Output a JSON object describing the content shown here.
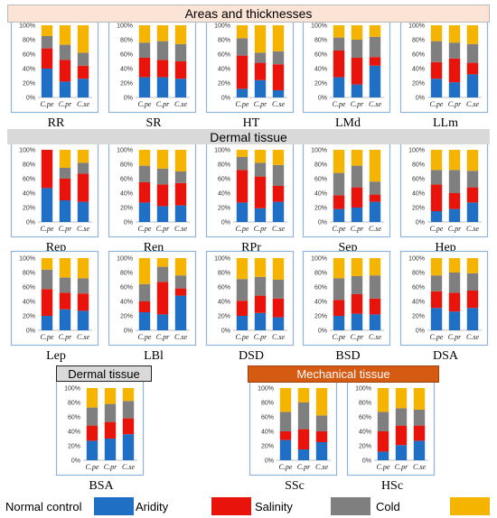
{
  "headers": {
    "areas": "Areas and thicknesses",
    "dermal": "Dermal tissue",
    "dermal_small": "Dermal tissue",
    "mechanical": "Mechanical tissue"
  },
  "legend": {
    "items": [
      {
        "label": "Normal control",
        "color": "#1f6fc5"
      },
      {
        "label": "Aridity",
        "color": "#e8140c"
      },
      {
        "label": "Salinity",
        "color": "#7f7f7f"
      },
      {
        "label": "Cold",
        "color": "#f5b400"
      }
    ]
  },
  "chart_data": {
    "type": "bar",
    "stacked": "percent",
    "y_ticks": [
      "0%",
      "20%",
      "40%",
      "60%",
      "80%",
      "100%"
    ],
    "categories": [
      "C.pe",
      "C.pr",
      "C.se"
    ],
    "series_names": [
      "Normal control",
      "Aridity",
      "Salinity",
      "Cold"
    ],
    "colors": [
      "#1f6fc5",
      "#e8140c",
      "#7f7f7f",
      "#f5b400"
    ],
    "panels": [
      {
        "title": "RR",
        "cumulative": [
          [
            40,
            68,
            85
          ],
          [
            22,
            52,
            73
          ],
          [
            26,
            44,
            62
          ]
        ]
      },
      {
        "title": "SR",
        "cumulative": [
          [
            28,
            55,
            76
          ],
          [
            28,
            52,
            78
          ],
          [
            26,
            50,
            74
          ]
        ]
      },
      {
        "title": "HT",
        "cumulative": [
          [
            12,
            58,
            82
          ],
          [
            24,
            48,
            62
          ],
          [
            10,
            46,
            64
          ]
        ]
      },
      {
        "title": "LMd",
        "cumulative": [
          [
            28,
            65,
            83
          ],
          [
            18,
            55,
            80
          ],
          [
            44,
            56,
            84
          ]
        ]
      },
      {
        "title": "LLm",
        "cumulative": [
          [
            26,
            49,
            78
          ],
          [
            21,
            54,
            76
          ],
          [
            32,
            48,
            74
          ]
        ]
      },
      {
        "title": "Rep",
        "cumulative": [
          [
            47,
            100,
            100
          ],
          [
            30,
            60,
            75
          ],
          [
            28,
            67,
            82
          ]
        ]
      },
      {
        "title": "Ren",
        "cumulative": [
          [
            27,
            55,
            78
          ],
          [
            22,
            52,
            74
          ],
          [
            23,
            54,
            70
          ]
        ]
      },
      {
        "title": "RPr",
        "cumulative": [
          [
            27,
            72,
            90
          ],
          [
            19,
            63,
            82
          ],
          [
            28,
            50,
            79
          ]
        ]
      },
      {
        "title": "Sep",
        "cumulative": [
          [
            18,
            37,
            68
          ],
          [
            20,
            48,
            78
          ],
          [
            28,
            38,
            56
          ]
        ]
      },
      {
        "title": "Hep",
        "cumulative": [
          [
            15,
            52,
            72
          ],
          [
            18,
            40,
            72
          ],
          [
            27,
            48,
            71
          ]
        ]
      },
      {
        "title": "Lep",
        "cumulative": [
          [
            20,
            57,
            84
          ],
          [
            29,
            52,
            73
          ],
          [
            27,
            51,
            72
          ]
        ]
      },
      {
        "title": "LBl",
        "cumulative": [
          [
            25,
            40,
            64
          ],
          [
            22,
            67,
            88
          ],
          [
            48,
            58,
            76
          ]
        ]
      },
      {
        "title": "DSD",
        "cumulative": [
          [
            20,
            41,
            71
          ],
          [
            24,
            48,
            74
          ],
          [
            18,
            44,
            70
          ]
        ]
      },
      {
        "title": "BSD",
        "cumulative": [
          [
            20,
            42,
            72
          ],
          [
            23,
            50,
            75
          ],
          [
            22,
            44,
            76
          ]
        ]
      },
      {
        "title": "DSA",
        "cumulative": [
          [
            31,
            54,
            76
          ],
          [
            26,
            52,
            80
          ],
          [
            31,
            55,
            79
          ]
        ]
      },
      {
        "title": "BSA",
        "cumulative": [
          [
            27,
            48,
            73
          ],
          [
            30,
            53,
            78
          ],
          [
            36,
            58,
            82
          ]
        ]
      },
      {
        "title": "SSc",
        "cumulative": [
          [
            28,
            40,
            67
          ],
          [
            15,
            43,
            80
          ],
          [
            25,
            40,
            62
          ]
        ]
      },
      {
        "title": "HSc",
        "cumulative": [
          [
            12,
            40,
            67
          ],
          [
            21,
            48,
            72
          ],
          [
            27,
            48,
            70
          ]
        ]
      }
    ]
  }
}
